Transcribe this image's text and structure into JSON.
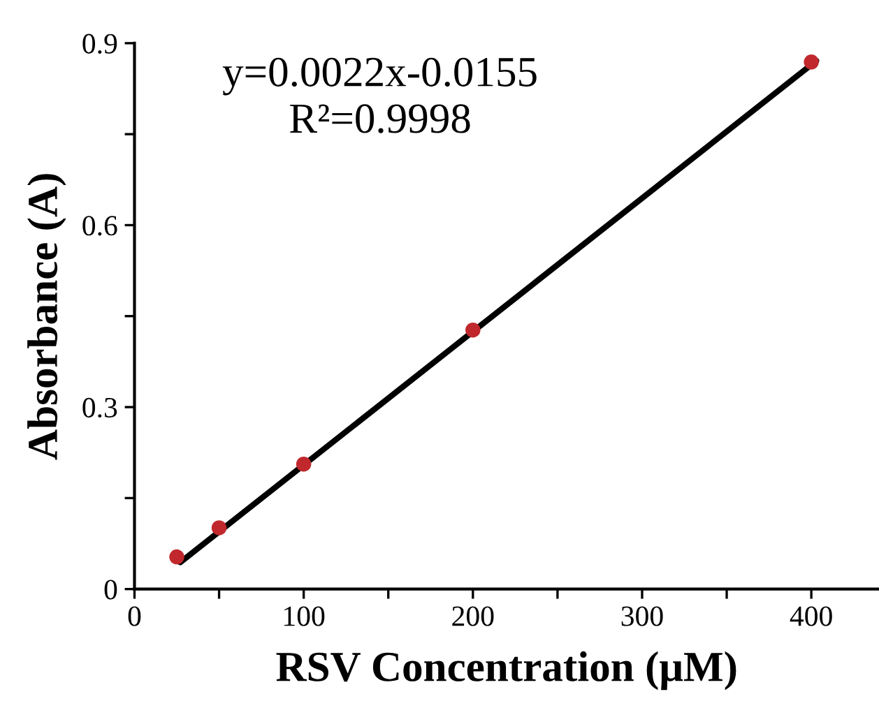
{
  "chart_data": {
    "type": "scatter",
    "xlabel": "RSV Concentration (μM)",
    "ylabel": "Absorbance (A)",
    "annotations": [
      "y=0.0022x-0.0155",
      "R²=0.9998"
    ],
    "series": [
      {
        "color": "#c0282d",
        "x": [
          25,
          50,
          100,
          200,
          400
        ],
        "values": [
          0.053,
          0.101,
          0.206,
          0.427,
          0.869
        ],
        "marker": "circle"
      },
      {
        "type": "line",
        "color": "#000000",
        "x": [
          27,
          403
        ],
        "values": [
          0.044,
          0.871
        ],
        "line_style": "solid",
        "marker": "none"
      }
    ],
    "xlim": [
      0,
      440
    ],
    "ylim": [
      0,
      0.9
    ],
    "xticks": [
      0,
      {
        "value": 50,
        "label": null
      },
      100,
      {
        "value": 150,
        "label": null
      },
      200,
      {
        "value": 250,
        "label": null
      },
      300,
      {
        "value": 350,
        "label": null
      },
      400
    ],
    "yticks": [
      0,
      {
        "value": 0.15,
        "label": null
      },
      0.3,
      {
        "value": 0.45,
        "label": null
      },
      0.6,
      {
        "value": 0.75,
        "label": null
      },
      0.9
    ],
    "grid": false,
    "legend": false
  }
}
